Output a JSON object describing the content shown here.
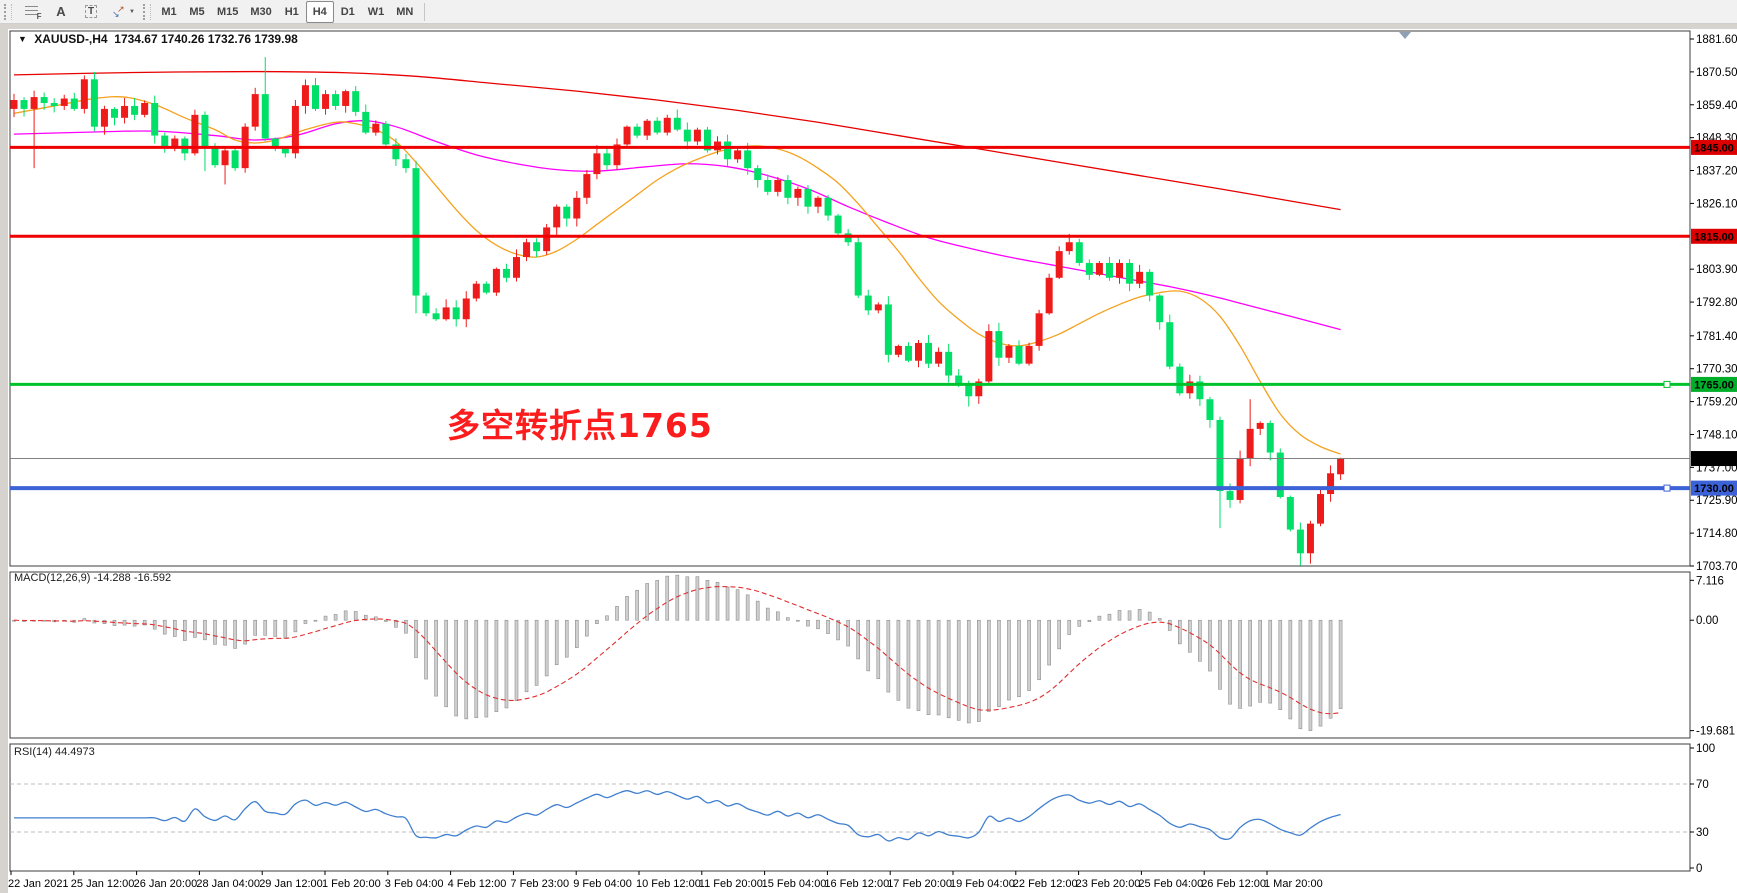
{
  "toolbar": {
    "tools": [
      {
        "name": "fibonacci",
        "label": "F"
      },
      {
        "name": "text",
        "label": "A"
      },
      {
        "name": "label",
        "label": "T"
      },
      {
        "name": "arrows",
        "label": "arrows"
      }
    ],
    "timeframes": [
      "M1",
      "M5",
      "M15",
      "M30",
      "H1",
      "H4",
      "D1",
      "W1",
      "MN"
    ],
    "active_timeframe": "H4"
  },
  "chart": {
    "title_symbol": "XAUUSD-,H4",
    "title_ohlc": "1734.67 1740.26 1732.76 1739.98",
    "annotation": {
      "text": "多空转折点1765",
      "color": "#fb1d1d"
    }
  },
  "indicators": {
    "macd": {
      "label": "MACD(12,26,9) -14.288 -16.592",
      "fast": 12,
      "slow": 26,
      "signal": 9,
      "ticks": [
        {
          "v": 7.116,
          "label": "7.116"
        },
        {
          "v": 0,
          "label": "0.00"
        },
        {
          "v": -19.681,
          "label": "-19.681"
        }
      ]
    },
    "rsi": {
      "label": "RSI(14) 44.4973",
      "period": 14,
      "levels": [
        70,
        30
      ],
      "ticks": [
        {
          "v": 100,
          "label": "100"
        },
        {
          "v": 70,
          "label": "70"
        },
        {
          "v": 30,
          "label": "30"
        },
        {
          "v": 0,
          "label": "0"
        }
      ]
    }
  },
  "price_scale": {
    "ticks": [
      1881.6,
      1870.5,
      1859.4,
      1848.3,
      1837.2,
      1826.1,
      1803.9,
      1792.8,
      1781.4,
      1770.3,
      1759.2,
      1748.1,
      1737.0,
      1725.9,
      1714.8,
      1703.7
    ]
  },
  "hlines": [
    {
      "name": "hline-1845",
      "price": 1845.0,
      "label": "1845.00",
      "color": "#ee0000",
      "badge": "#dd0000",
      "width": 3,
      "handle": false
    },
    {
      "name": "hline-1815",
      "price": 1815.0,
      "label": "1815.00",
      "color": "#ee0000",
      "badge": "#dd0000",
      "width": 3,
      "handle": false
    },
    {
      "name": "hline-1765",
      "price": 1765.0,
      "label": "1765.00",
      "color": "#00c22c",
      "badge": "#00ae2a",
      "width": 3,
      "handle": true
    },
    {
      "name": "hline-1730",
      "price": 1730.0,
      "label": "1730.00",
      "color": "#3c62d8",
      "badge": "#3c62d8",
      "width": 4,
      "handle": true
    }
  ],
  "bid_line": {
    "price": 1739.98,
    "label": "1739.98",
    "color": "#808080",
    "badge": "#000000"
  },
  "time_axis": {
    "labels": [
      "22 Jan 2021",
      "25 Jan 12:00",
      "26 Jan 20:00",
      "28 Jan 04:00",
      "29 Jan 12:00",
      "1 Feb 20:00",
      "3 Feb 04:00",
      "4 Feb 12:00",
      "7 Feb 23:00",
      "9 Feb 04:00",
      "10 Feb 12:00",
      "11 Feb 20:00",
      "15 Feb 04:00",
      "16 Feb 12:00",
      "17 Feb 20:00",
      "19 Feb 04:00",
      "22 Feb 12:00",
      "23 Feb 20:00",
      "25 Feb 04:00",
      "26 Feb 12:00",
      "1 Mar 20:00"
    ]
  },
  "chart_data": {
    "type": "candlestick",
    "instrument": "XAUUSD",
    "timeframe": "H4",
    "colors": {
      "bull": "#ef1b1b",
      "bear": "#00df68",
      "ma_slow": "#e80000",
      "ma_mid": "#ff00ff",
      "ma_fast": "#f5a11c",
      "macd_hist": "#cfcfcf",
      "macd_signal": "#e03030",
      "rsi": "#3f7fce"
    },
    "closes": [
      1861,
      1858,
      1862,
      1860,
      1859,
      1861.5,
      1858,
      1868,
      1852,
      1858,
      1855,
      1859,
      1856,
      1860,
      1849,
      1845,
      1848,
      1843,
      1856,
      1845,
      1839,
      1844,
      1838,
      1852,
      1863,
      1848,
      1845,
      1843,
      1859,
      1866,
      1858,
      1863,
      1859,
      1864,
      1857,
      1850,
      1853,
      1846,
      1841,
      1838,
      1795,
      1789,
      1787,
      1791,
      1787,
      1794,
      1799,
      1796,
      1804,
      1801,
      1808,
      1813,
      1810,
      1818,
      1825,
      1821,
      1828,
      1836,
      1843,
      1839,
      1846,
      1852,
      1849,
      1854,
      1850,
      1855,
      1851,
      1847,
      1851,
      1844,
      1847,
      1841,
      1844,
      1838,
      1834,
      1830,
      1834,
      1828,
      1831,
      1825,
      1828,
      1822,
      1816,
      1813,
      1795,
      1790,
      1792,
      1775,
      1778,
      1773,
      1779,
      1772,
      1776,
      1768,
      1765,
      1761,
      1766,
      1783,
      1774,
      1778,
      1772,
      1778,
      1789,
      1801,
      1810,
      1813,
      1806,
      1802,
      1806,
      1801,
      1806,
      1799,
      1803,
      1795,
      1786,
      1771,
      1762,
      1766,
      1760,
      1753,
      1729,
      1726,
      1740,
      1750,
      1752,
      1742,
      1727,
      1716,
      1708,
      1718,
      1728,
      1735,
      1739.98
    ],
    "first_open": 1858,
    "current_bar": {
      "open": 1734.67,
      "high": 1740.26,
      "low": 1732.76,
      "close": 1739.98
    },
    "wick_overrides": {
      "2": {
        "low": 1838
      },
      "8": {
        "high": 1870.5
      },
      "19": {
        "low": 1837
      },
      "21": {
        "low": 1832.5
      },
      "25": {
        "high": 1875.5
      },
      "40": {
        "low": 1789
      },
      "44": {
        "low": 1784.5
      },
      "95": {
        "low": 1757.5
      },
      "105": {
        "high": 1815.8
      },
      "120": {
        "low": 1716.5
      },
      "123": {
        "high": 1760
      },
      "128": {
        "low": 1703.8
      },
      "129": {
        "low": 1704.5
      }
    },
    "ma_slow_points": [
      [
        0,
        1869.5
      ],
      [
        12,
        1870.3
      ],
      [
        24,
        1870.6
      ],
      [
        33,
        1870.2
      ],
      [
        40,
        1869
      ],
      [
        48,
        1866.5
      ],
      [
        56,
        1864
      ],
      [
        64,
        1861
      ],
      [
        72,
        1857.5
      ],
      [
        80,
        1853.5
      ],
      [
        88,
        1849
      ],
      [
        96,
        1844.5
      ],
      [
        104,
        1840
      ],
      [
        112,
        1835.5
      ],
      [
        120,
        1831
      ],
      [
        126,
        1827.5
      ],
      [
        132,
        1824
      ]
    ],
    "ma_mid_points": [
      [
        0,
        1849.5
      ],
      [
        8,
        1850.2
      ],
      [
        14,
        1850.5
      ],
      [
        20,
        1849
      ],
      [
        24,
        1847.5
      ],
      [
        28,
        1849
      ],
      [
        32,
        1853
      ],
      [
        35,
        1854
      ],
      [
        38,
        1852
      ],
      [
        42,
        1847
      ],
      [
        46,
        1842.5
      ],
      [
        50,
        1839.5
      ],
      [
        54,
        1837.5
      ],
      [
        58,
        1837
      ],
      [
        63,
        1838.5
      ],
      [
        67,
        1839.5
      ],
      [
        71,
        1838.5
      ],
      [
        75,
        1835.5
      ],
      [
        79,
        1831
      ],
      [
        83,
        1825
      ],
      [
        87,
        1819.5
      ],
      [
        91,
        1814.5
      ],
      [
        95,
        1811
      ],
      [
        99,
        1808
      ],
      [
        103,
        1805.5
      ],
      [
        107,
        1803
      ],
      [
        111,
        1800.5
      ],
      [
        115,
        1798
      ],
      [
        119,
        1795
      ],
      [
        123,
        1791.5
      ],
      [
        127,
        1788
      ],
      [
        132,
        1783.5
      ]
    ],
    "ma_fast_points": [
      [
        0,
        1856.5
      ],
      [
        4,
        1859
      ],
      [
        8,
        1861.5
      ],
      [
        11,
        1862
      ],
      [
        14,
        1859.5
      ],
      [
        17,
        1855
      ],
      [
        20,
        1851
      ],
      [
        22,
        1847.5
      ],
      [
        24,
        1846.5
      ],
      [
        26,
        1847.5
      ],
      [
        29,
        1851
      ],
      [
        32,
        1853.5
      ],
      [
        34,
        1853
      ],
      [
        36,
        1851
      ],
      [
        38,
        1847
      ],
      [
        40,
        1840
      ],
      [
        42,
        1832
      ],
      [
        44,
        1824
      ],
      [
        46,
        1817
      ],
      [
        48,
        1812
      ],
      [
        50,
        1809
      ],
      [
        52,
        1808
      ],
      [
        54,
        1810
      ],
      [
        56,
        1814
      ],
      [
        58,
        1819
      ],
      [
        60,
        1824
      ],
      [
        62,
        1829
      ],
      [
        64,
        1834
      ],
      [
        66,
        1838
      ],
      [
        68,
        1841
      ],
      [
        70,
        1843.5
      ],
      [
        72,
        1845
      ],
      [
        74,
        1845.5
      ],
      [
        76,
        1844.5
      ],
      [
        78,
        1842
      ],
      [
        80,
        1838
      ],
      [
        82,
        1833
      ],
      [
        84,
        1826
      ],
      [
        86,
        1818
      ],
      [
        88,
        1810
      ],
      [
        90,
        1801
      ],
      [
        92,
        1793
      ],
      [
        94,
        1787
      ],
      [
        96,
        1782
      ],
      [
        98,
        1779
      ],
      [
        100,
        1778
      ],
      [
        102,
        1779.5
      ],
      [
        104,
        1782
      ],
      [
        106,
        1785.5
      ],
      [
        108,
        1789
      ],
      [
        110,
        1792
      ],
      [
        112,
        1794.5
      ],
      [
        114,
        1796
      ],
      [
        116,
        1796.5
      ],
      [
        118,
        1794
      ],
      [
        120,
        1788
      ],
      [
        122,
        1778
      ],
      [
        124,
        1766
      ],
      [
        126,
        1755
      ],
      [
        128,
        1748
      ],
      [
        130,
        1744
      ],
      [
        132,
        1741.5
      ]
    ]
  }
}
